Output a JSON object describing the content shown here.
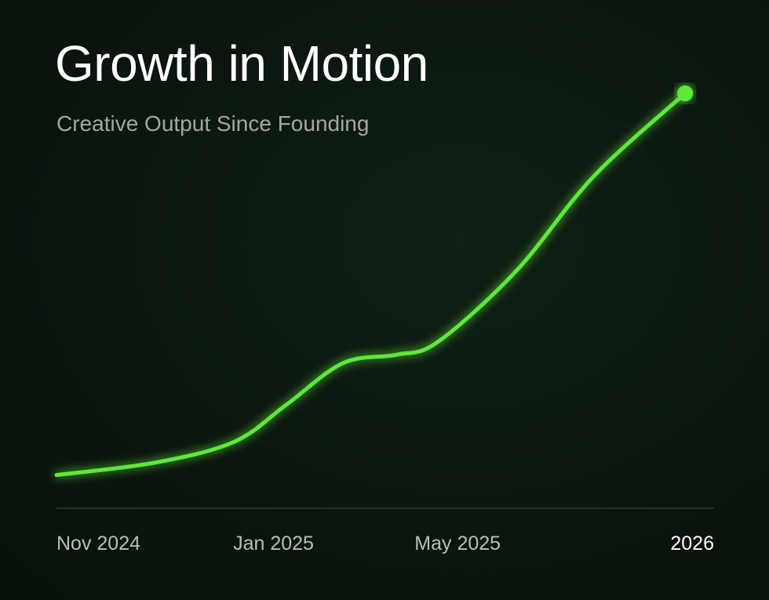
{
  "chart_data": {
    "type": "line",
    "title": "Growth in Motion",
    "subtitle": "Creative Output Since Founding",
    "xlabel": "",
    "ylabel": "",
    "xlim": [
      0,
      100
    ],
    "ylim": [
      0,
      100
    ],
    "grid": false,
    "line_color": "#5fe83a",
    "ticks": [
      {
        "label": "Nov 2024",
        "x": 0,
        "anchor": "start"
      },
      {
        "label": "Jan 2025",
        "x": 33,
        "anchor": "middle"
      },
      {
        "label": "May 2025",
        "x": 61,
        "anchor": "middle"
      },
      {
        "label": "2026",
        "x": 100,
        "anchor": "end"
      }
    ],
    "series": [
      {
        "name": "Creative Output",
        "x": [
          0,
          15,
          27,
          35,
          43.6,
          51.7,
          57.9,
          69.8,
          81.7,
          95.6
        ],
        "y": [
          8,
          11,
          16,
          25,
          35,
          37,
          40,
          57,
          80,
          100
        ]
      }
    ]
  }
}
